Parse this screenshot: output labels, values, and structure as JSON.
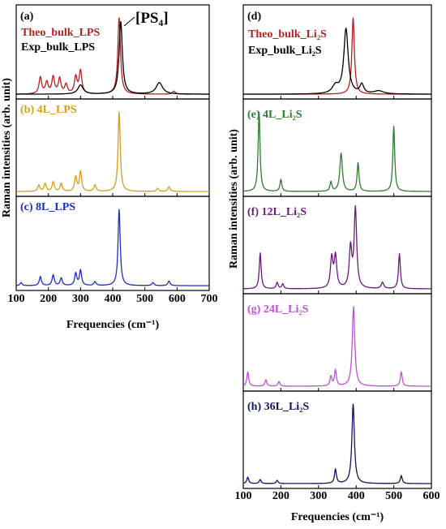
{
  "chart_data": [
    {
      "type": "line",
      "xlabel": "Frequencies (cm⁻¹)",
      "ylabel": "Raman intensities (arb. unit)",
      "xlim": [
        100,
        700
      ],
      "xticks": [
        100,
        200,
        300,
        400,
        500,
        600,
        700
      ],
      "panels": [
        {
          "id": "a",
          "label": "(a)",
          "annotation": "[PS₄]",
          "series": [
            {
              "name": "Theo_bulk_LPS",
              "color": "#b22222",
              "peaks": [
                [
                  175,
                  0.22,
                  5
                ],
                [
                  195,
                  0.15,
                  5
                ],
                [
                  215,
                  0.22,
                  5
                ],
                [
                  235,
                  0.2,
                  5
                ],
                [
                  255,
                  0.12,
                  5
                ],
                [
                  285,
                  0.22,
                  5
                ],
                [
                  300,
                  0.3,
                  5
                ],
                [
                  420,
                  1.0,
                  5
                ],
                [
                  590,
                  0.04,
                  5
                ]
              ]
            },
            {
              "name": "Exp_bulk_LPS",
              "color": "#000000",
              "peaks": [
                [
                  300,
                  0.12,
                  10
                ],
                [
                  425,
                  0.95,
                  6
                ],
                [
                  545,
                  0.15,
                  12
                ]
              ]
            }
          ]
        },
        {
          "id": "b",
          "label": "(b) 4L_LPS",
          "series": [
            {
              "name": "4L_LPS",
              "color": "#d4a017",
              "peaks": [
                [
                  170,
                  0.08,
                  4
                ],
                [
                  190,
                  0.1,
                  4
                ],
                [
                  215,
                  0.12,
                  4
                ],
                [
                  240,
                  0.1,
                  4
                ],
                [
                  285,
                  0.18,
                  4
                ],
                [
                  300,
                  0.25,
                  4
                ],
                [
                  345,
                  0.08,
                  4
                ],
                [
                  420,
                  1.0,
                  4
                ],
                [
                  540,
                  0.04,
                  4
                ],
                [
                  575,
                  0.06,
                  4
                ]
              ]
            }
          ]
        },
        {
          "id": "c",
          "label": "(c) 8L_LPS",
          "series": [
            {
              "name": "8L_LPS",
              "color": "#1c2fbd",
              "peaks": [
                [
                  115,
                  0.04,
                  4
                ],
                [
                  175,
                  0.12,
                  4
                ],
                [
                  215,
                  0.14,
                  4
                ],
                [
                  240,
                  0.1,
                  4
                ],
                [
                  285,
                  0.16,
                  4
                ],
                [
                  300,
                  0.2,
                  4
                ],
                [
                  345,
                  0.05,
                  4
                ],
                [
                  420,
                  1.0,
                  4
                ],
                [
                  525,
                  0.04,
                  4
                ],
                [
                  575,
                  0.06,
                  4
                ]
              ]
            }
          ]
        }
      ]
    },
    {
      "type": "line",
      "xlabel": "Frequencies (cm⁻¹)",
      "ylabel": "Raman intensities (arb. unit)",
      "xlim": [
        100,
        600
      ],
      "xticks": [
        100,
        200,
        300,
        400,
        500,
        600
      ],
      "panels": [
        {
          "id": "d",
          "label": "(d)",
          "series": [
            {
              "name": "Theo_bulk_Li₂S",
              "color": "#b22222",
              "peaks": [
                [
                  392,
                  1.0,
                  4
                ]
              ]
            },
            {
              "name": "Exp_bulk_Li₂S",
              "color": "#000000",
              "peaks": [
                [
                  345,
                  0.1,
                  10
                ],
                [
                  373,
                  0.85,
                  7
                ],
                [
                  415,
                  0.12,
                  6
                ],
                [
                  460,
                  0.04,
                  15
                ]
              ]
            }
          ]
        },
        {
          "id": "e",
          "label": "(e) 4L_Li₂S",
          "series": [
            {
              "name": "4L_Li₂S",
              "color": "#2e7d32",
              "peaks": [
                [
                  142,
                  1.0,
                  3
                ],
                [
                  200,
                  0.15,
                  3
                ],
                [
                  333,
                  0.12,
                  3
                ],
                [
                  360,
                  0.48,
                  4
                ],
                [
                  405,
                  0.36,
                  3
                ],
                [
                  500,
                  0.82,
                  3
                ]
              ]
            }
          ]
        },
        {
          "id": "f",
          "label": "(f) 12L_Li₂S",
          "series": [
            {
              "name": "12L_Li₂S",
              "color": "#6a1b7a",
              "peaks": [
                [
                  145,
                  0.45,
                  3
                ],
                [
                  190,
                  0.08,
                  3
                ],
                [
                  205,
                  0.06,
                  3
                ],
                [
                  335,
                  0.38,
                  4
                ],
                [
                  345,
                  0.4,
                  4
                ],
                [
                  385,
                  0.5,
                  4
                ],
                [
                  398,
                  1.0,
                  4
                ],
                [
                  470,
                  0.08,
                  4
                ],
                [
                  515,
                  0.44,
                  3
                ]
              ]
            }
          ]
        },
        {
          "id": "g",
          "label": "(g) 24L_Li₂S",
          "series": [
            {
              "name": "24L_Li₂S",
              "color": "#c050d8",
              "peaks": [
                [
                  112,
                  0.18,
                  3
                ],
                [
                  160,
                  0.08,
                  3
                ],
                [
                  195,
                  0.06,
                  3
                ],
                [
                  333,
                  0.12,
                  3
                ],
                [
                  345,
                  0.2,
                  3
                ],
                [
                  393,
                  1.0,
                  4
                ],
                [
                  520,
                  0.18,
                  3
                ]
              ]
            }
          ]
        },
        {
          "id": "h",
          "label": "(h) 36L_Li₂S",
          "series": [
            {
              "name": "36L_Li₂S",
              "color": "#101560",
              "peaks": [
                [
                  112,
                  0.08,
                  3
                ],
                [
                  145,
                  0.05,
                  3
                ],
                [
                  190,
                  0.04,
                  3
                ],
                [
                  345,
                  0.18,
                  3
                ],
                [
                  392,
                  1.0,
                  4
                ],
                [
                  520,
                  0.1,
                  3
                ]
              ]
            }
          ]
        }
      ]
    }
  ]
}
